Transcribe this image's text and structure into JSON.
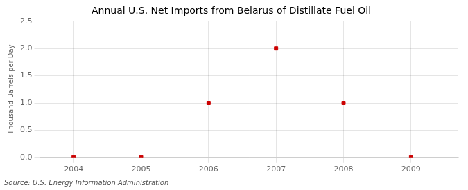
{
  "chart_data": {
    "type": "scatter",
    "title": "Annual U.S. Net Imports from Belarus of Distillate Fuel Oil",
    "ylabel": "Thousand Barrels per Day",
    "source": "Source: U.S. Energy Information Administration",
    "x": [
      2004,
      2005,
      2006,
      2007,
      2008,
      2009
    ],
    "values": [
      0,
      0,
      1.0,
      2.0,
      1.0,
      0
    ],
    "color": "#cc0000",
    "marker": "square",
    "xlim": [
      2003.5,
      2009.7
    ],
    "ylim": [
      0,
      2.5
    ],
    "xticks": [
      2004,
      2005,
      2006,
      2007,
      2008,
      2009
    ],
    "yticks": [
      {
        "value": 0,
        "label": "0.0"
      },
      0.5,
      {
        "value": 1,
        "label": "1.0"
      },
      1.5,
      {
        "value": 2,
        "label": "2.0"
      },
      2.5
    ],
    "grid": true
  }
}
